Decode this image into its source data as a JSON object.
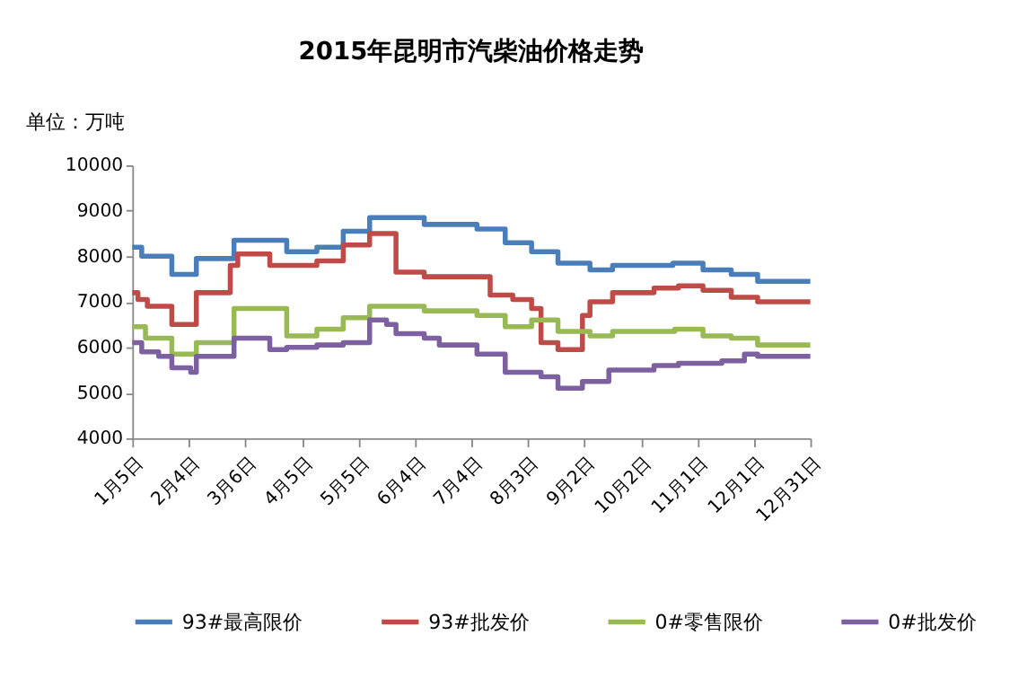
{
  "chart_data": {
    "type": "step",
    "title": "2015年昆明市汽柴油价格走势",
    "ylabel": "单位：万吨",
    "xlim": [
      "2015-01-05",
      "2015-12-31"
    ],
    "xticks": [
      {
        "value": "2015-01-05",
        "label": "1月5日"
      },
      {
        "value": "2015-02-04",
        "label": "2月4日"
      },
      {
        "value": "2015-03-06",
        "label": "3月6日"
      },
      {
        "value": "2015-04-05",
        "label": "4月5日"
      },
      {
        "value": "2015-05-05",
        "label": "5月5日"
      },
      {
        "value": "2015-06-04",
        "label": "6月4日"
      },
      {
        "value": "2015-07-04",
        "label": "7月4日"
      },
      {
        "value": "2015-08-03",
        "label": "8月3日"
      },
      {
        "value": "2015-09-02",
        "label": "9月2日"
      },
      {
        "value": "2015-10-02",
        "label": "10月2日"
      },
      {
        "value": "2015-11-01",
        "label": "11月1日"
      },
      {
        "value": "2015-12-01",
        "label": "12月1日"
      },
      {
        "value": "2015-12-31",
        "label": "12月31日"
      }
    ],
    "ylim": [
      4000,
      10000
    ],
    "yticks": [
      4000,
      5000,
      6000,
      7000,
      8000,
      9000,
      10000
    ],
    "grid": false,
    "legend": "bottom",
    "marker": "none",
    "line_style": "solid",
    "series": [
      {
        "name": "93#最高限价",
        "color": "#4a7ebb",
        "x": [
          "2015-01-05",
          "2015-01-10",
          "2015-01-26",
          "2015-02-08",
          "2015-02-28",
          "2015-03-28",
          "2015-04-13",
          "2015-04-27",
          "2015-05-11",
          "2015-06-09",
          "2015-07-07",
          "2015-07-22",
          "2015-08-05",
          "2015-08-19",
          "2015-09-05",
          "2015-09-17",
          "2015-10-19",
          "2015-11-04",
          "2015-11-19",
          "2015-12-03",
          "2015-12-31"
        ],
        "values": [
          8200,
          8000,
          7600,
          7950,
          8350,
          8100,
          8200,
          8550,
          8850,
          8700,
          8600,
          8300,
          8100,
          7850,
          7700,
          7800,
          7850,
          7700,
          7600,
          7450,
          7450
        ]
      },
      {
        "name": "93#批发价",
        "color": "#be4b48",
        "x": [
          "2015-01-05",
          "2015-01-08",
          "2015-01-13",
          "2015-01-26",
          "2015-02-08",
          "2015-02-26",
          "2015-03-02",
          "2015-03-19",
          "2015-04-13",
          "2015-04-27",
          "2015-05-11",
          "2015-05-25",
          "2015-06-09",
          "2015-07-14",
          "2015-07-26",
          "2015-08-05",
          "2015-08-10",
          "2015-08-19",
          "2015-09-01",
          "2015-09-05",
          "2015-09-17",
          "2015-10-09",
          "2015-10-22",
          "2015-11-04",
          "2015-11-19",
          "2015-12-03",
          "2015-12-31"
        ],
        "values": [
          7200,
          7050,
          6900,
          6500,
          7200,
          7800,
          8050,
          7800,
          7900,
          8250,
          8500,
          7650,
          7550,
          7150,
          7050,
          6850,
          6100,
          5950,
          6700,
          7000,
          7200,
          7300,
          7350,
          7250,
          7100,
          7000,
          7000
        ]
      },
      {
        "name": "0#零售限价",
        "color": "#98b954",
        "x": [
          "2015-01-05",
          "2015-01-12",
          "2015-01-26",
          "2015-02-08",
          "2015-02-28",
          "2015-03-28",
          "2015-04-13",
          "2015-04-27",
          "2015-05-11",
          "2015-06-09",
          "2015-07-07",
          "2015-07-22",
          "2015-08-05",
          "2015-08-19",
          "2015-09-05",
          "2015-09-17",
          "2015-10-20",
          "2015-11-04",
          "2015-11-19",
          "2015-12-03",
          "2015-12-31"
        ],
        "values": [
          6450,
          6200,
          5850,
          6100,
          6850,
          6250,
          6400,
          6650,
          6900,
          6800,
          6700,
          6450,
          6600,
          6350,
          6250,
          6350,
          6400,
          6250,
          6200,
          6050,
          6050
        ]
      },
      {
        "name": "0#批发价",
        "color": "#7d60a0",
        "x": [
          "2015-01-05",
          "2015-01-10",
          "2015-01-19",
          "2015-01-26",
          "2015-02-05",
          "2015-02-08",
          "2015-02-28",
          "2015-03-19",
          "2015-03-28",
          "2015-04-13",
          "2015-04-27",
          "2015-05-11",
          "2015-05-20",
          "2015-05-25",
          "2015-06-09",
          "2015-06-17",
          "2015-07-07",
          "2015-07-22",
          "2015-08-10",
          "2015-08-19",
          "2015-09-01",
          "2015-09-15",
          "2015-10-09",
          "2015-10-22",
          "2015-11-14",
          "2015-11-26",
          "2015-12-03",
          "2015-12-31"
        ],
        "values": [
          6100,
          5900,
          5800,
          5550,
          5450,
          5800,
          6200,
          5950,
          6000,
          6050,
          6100,
          6600,
          6500,
          6300,
          6200,
          6050,
          5850,
          5450,
          5350,
          5100,
          5250,
          5500,
          5600,
          5650,
          5700,
          5850,
          5800,
          5800
        ]
      }
    ]
  }
}
